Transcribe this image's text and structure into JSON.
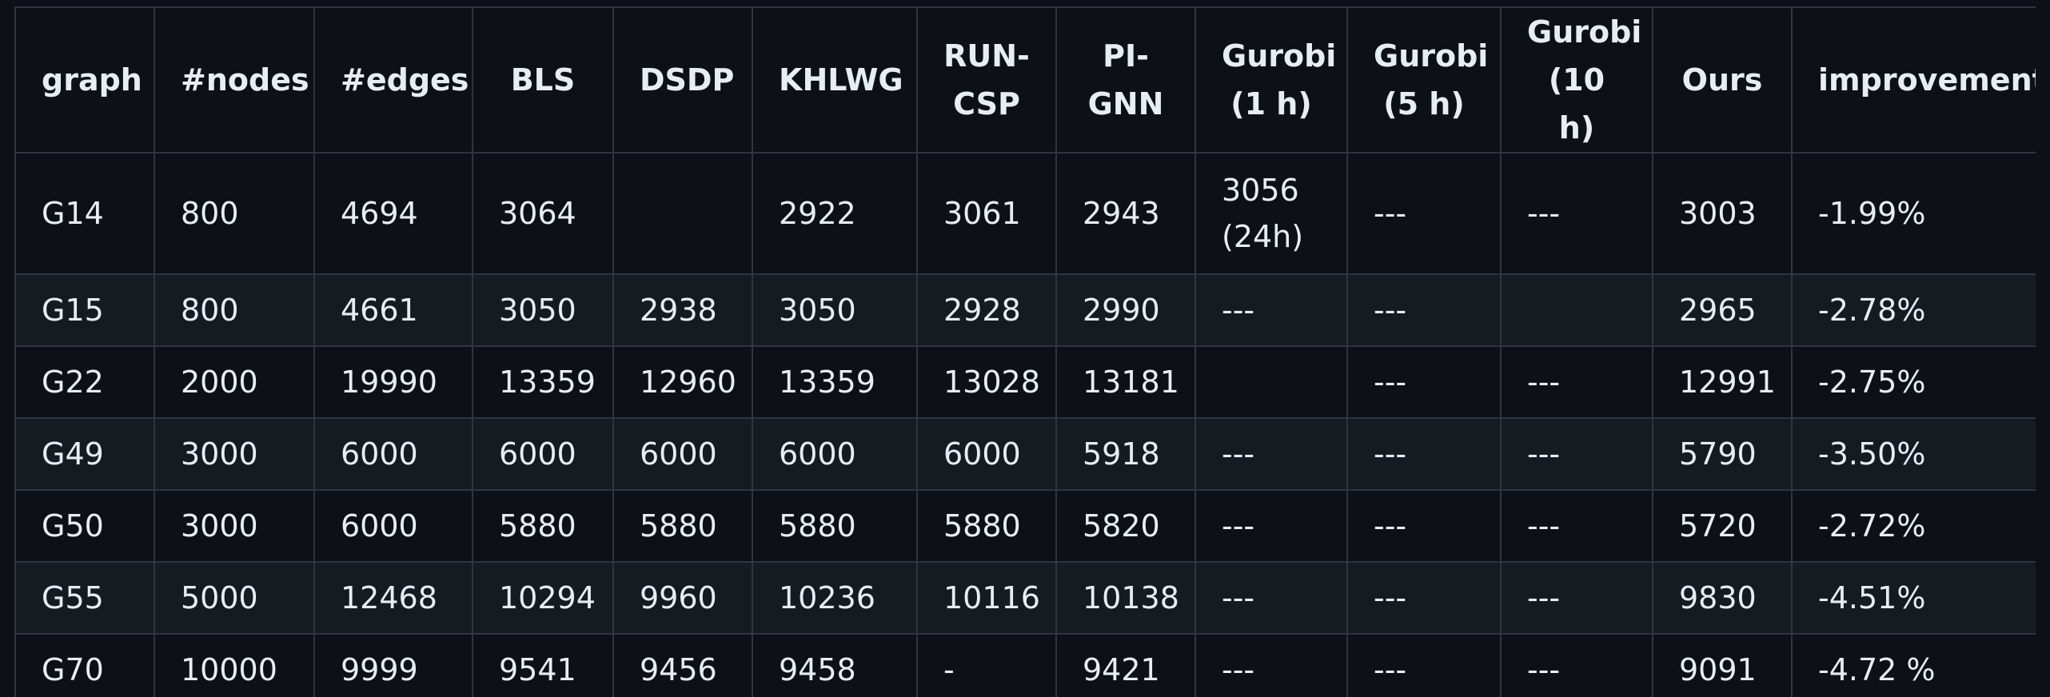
{
  "table": {
    "headers": [
      "graph",
      "#nodes",
      "#edges",
      "BLS",
      "DSDP",
      "KHLWG",
      "RUN-CSP",
      "PI-GNN",
      "Gurobi (1 h)",
      "Gurobi (5 h)",
      "Gurobi (10 h)",
      "Ours",
      "improvement"
    ],
    "rows": [
      [
        "G14",
        "800",
        "4694",
        "3064",
        "",
        "2922",
        "3061",
        "2943",
        "3056 (24h)",
        "---",
        "---",
        "3003",
        "-1.99%"
      ],
      [
        "G15",
        "800",
        "4661",
        "3050",
        "2938",
        "3050",
        "2928",
        "2990",
        "---",
        "---",
        "",
        "2965",
        "-2.78%"
      ],
      [
        "G22",
        "2000",
        "19990",
        "13359",
        "12960",
        "13359",
        "13028",
        "13181",
        "",
        "---",
        "---",
        "12991",
        "-2.75%"
      ],
      [
        "G49",
        "3000",
        "6000",
        "6000",
        "6000",
        "6000",
        "6000",
        "5918",
        "---",
        "---",
        "---",
        "5790",
        "-3.50%"
      ],
      [
        "G50",
        "3000",
        "6000",
        "5880",
        "5880",
        "5880",
        "5880",
        "5820",
        "---",
        "---",
        "---",
        "5720",
        "-2.72%"
      ],
      [
        "G55",
        "5000",
        "12468",
        "10294",
        "9960",
        "10236",
        "10116",
        "10138",
        "---",
        "---",
        "---",
        "9830",
        "-4.51%"
      ],
      [
        "G70",
        "10000",
        "9999",
        "9541",
        "9456",
        "9458",
        "-",
        "9421",
        "---",
        "---",
        "---",
        "9091",
        "-4.72 %"
      ]
    ]
  },
  "colors": {
    "background": "#0d1117",
    "row_alt": "#161b22",
    "border": "#30363d",
    "text": "#e6edf3"
  }
}
